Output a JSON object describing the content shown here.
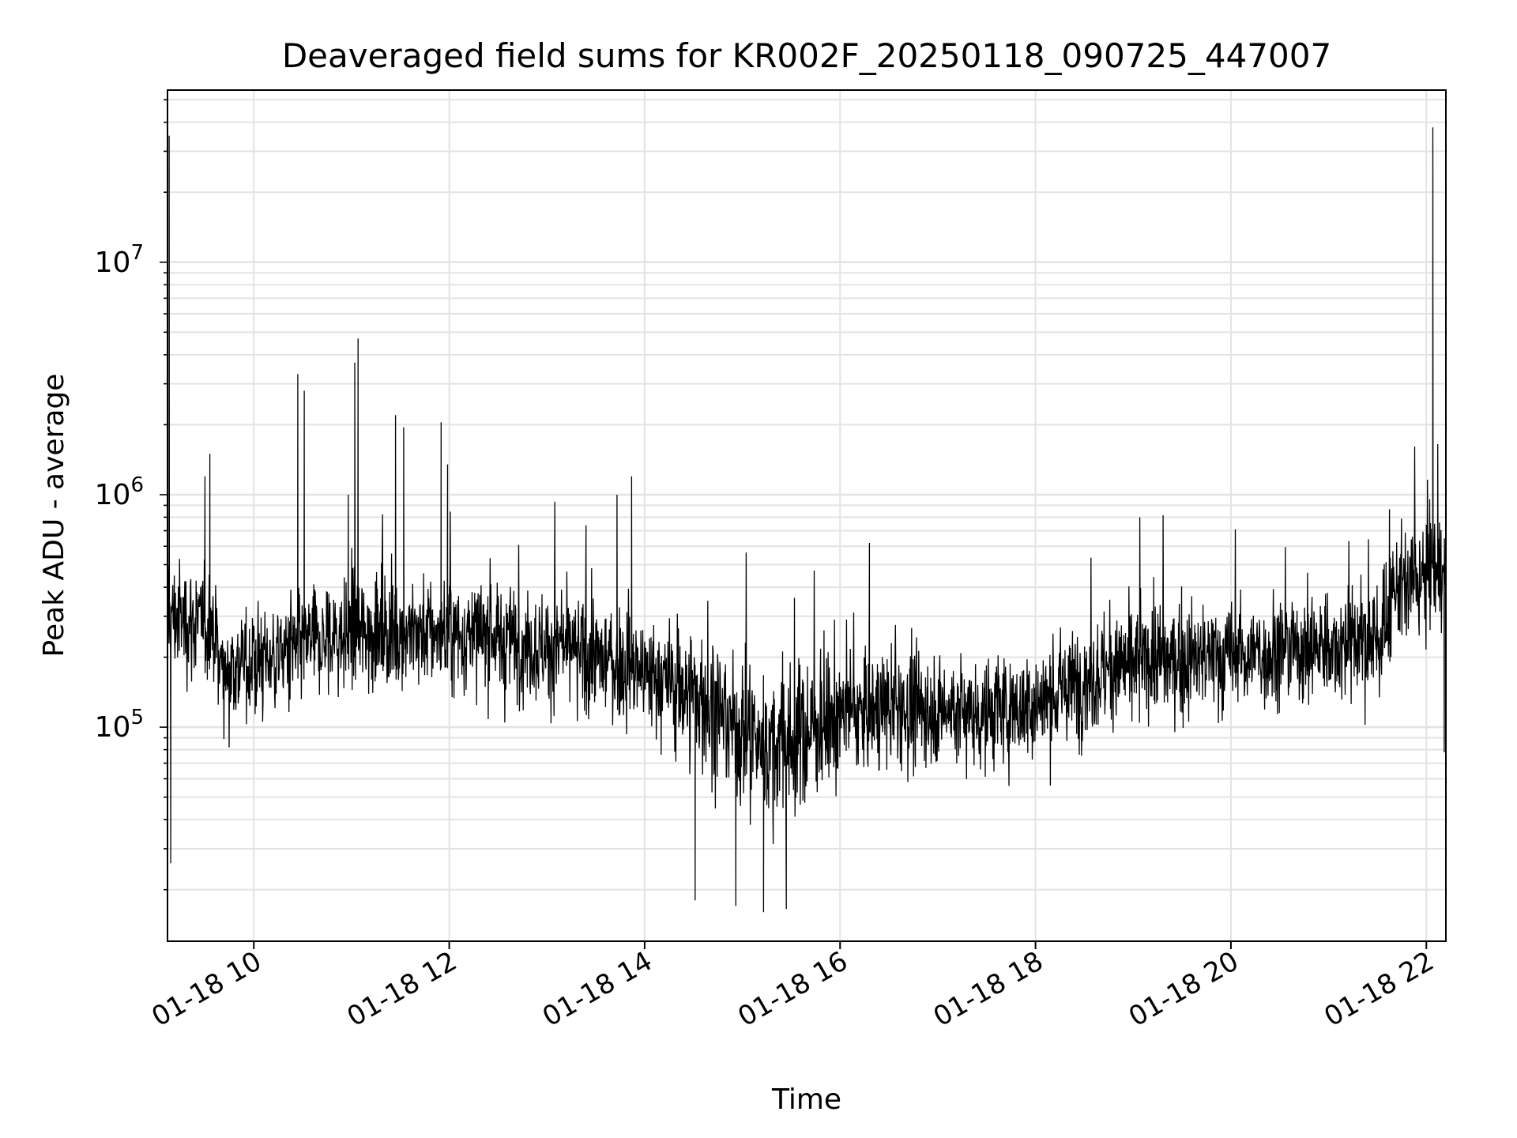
{
  "chart_data": {
    "type": "line",
    "title": "Deaveraged field sums for KR002F_20250118_090725_447007",
    "xlabel": "Time",
    "ylabel": "Peak ADU - average",
    "y_scale": "log",
    "ylim": [
      12000,
      55000000
    ],
    "xlim": [
      "01-18 09:07",
      "01-18 22:12"
    ],
    "grid": true,
    "x_ticks": [
      "01-18 10",
      "01-18 12",
      "01-18 14",
      "01-18 16",
      "01-18 18",
      "01-18 20",
      "01-18 22"
    ],
    "y_ticks": [
      {
        "base": "10",
        "exp": "5",
        "value": 100000
      },
      {
        "base": "10",
        "exp": "6",
        "value": 1000000
      },
      {
        "base": "10",
        "exp": "7",
        "value": 10000000
      }
    ],
    "series": [
      {
        "color": "#000000",
        "baseline": [
          [
            "01-18 09:07",
            300000
          ],
          [
            "01-18 09:35",
            270000
          ],
          [
            "01-18 09:40",
            180000
          ],
          [
            "01-18 10:00",
            190000
          ],
          [
            "01-18 10:30",
            220000
          ],
          [
            "01-18 11:00",
            250000
          ],
          [
            "01-18 11:30",
            260000
          ],
          [
            "01-18 12:00",
            250000
          ],
          [
            "01-18 12:30",
            240000
          ],
          [
            "01-18 13:00",
            220000
          ],
          [
            "01-18 13:30",
            200000
          ],
          [
            "01-18 14:00",
            170000
          ],
          [
            "01-18 14:30",
            140000
          ],
          [
            "01-18 15:00",
            95000
          ],
          [
            "01-18 15:20",
            80000
          ],
          [
            "01-18 15:40",
            95000
          ],
          [
            "01-18 16:00",
            115000
          ],
          [
            "01-18 16:30",
            120000
          ],
          [
            "01-18 17:00",
            120000
          ],
          [
            "01-18 17:30",
            115000
          ],
          [
            "01-18 18:00",
            125000
          ],
          [
            "01-18 18:30",
            160000
          ],
          [
            "01-18 19:00",
            190000
          ],
          [
            "01-18 19:30",
            195000
          ],
          [
            "01-18 20:00",
            200000
          ],
          [
            "01-18 20:30",
            215000
          ],
          [
            "01-18 21:00",
            225000
          ],
          [
            "01-18 21:35",
            240000
          ],
          [
            "01-18 21:40",
            380000
          ],
          [
            "01-18 22:00",
            450000
          ],
          [
            "01-18 22:12",
            450000
          ]
        ],
        "peaks": [
          [
            "01-18 09:08",
            35000000
          ],
          [
            "01-18 09:09",
            26000
          ],
          [
            "01-18 09:30",
            1200000
          ],
          [
            "01-18 09:33",
            1500000
          ],
          [
            "01-18 10:27",
            3300000
          ],
          [
            "01-18 10:31",
            2800000
          ],
          [
            "01-18 10:58",
            1000000
          ],
          [
            "01-18 11:02",
            3700000
          ],
          [
            "01-18 11:04",
            4700000
          ],
          [
            "01-18 11:27",
            2200000
          ],
          [
            "01-18 11:32",
            1950000
          ],
          [
            "01-18 11:55",
            2050000
          ],
          [
            "01-18 11:59",
            1350000
          ],
          [
            "01-18 13:43",
            1000000
          ],
          [
            "01-18 13:52",
            1200000
          ],
          [
            "01-18 14:31",
            18000
          ],
          [
            "01-18 14:56",
            17000
          ],
          [
            "01-18 15:13",
            16000
          ],
          [
            "01-18 15:27",
            16500
          ],
          [
            "01-18 15:32",
            360000
          ],
          [
            "01-18 16:18",
            620000
          ],
          [
            "01-18 22:04",
            38000000
          ],
          [
            "01-18 22:07",
            1650000
          ],
          [
            "01-18 22:11",
            78000
          ]
        ]
      }
    ]
  }
}
